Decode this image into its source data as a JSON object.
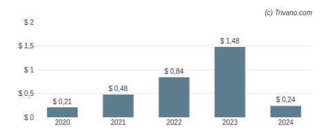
{
  "chart_data": {
    "type": "bar",
    "categories": [
      "2020",
      "2021",
      "2022",
      "2023",
      "2024"
    ],
    "values": [
      0.21,
      0.48,
      0.84,
      1.48,
      0.24
    ],
    "value_labels": [
      "$ 0,21",
      "$ 0,48",
      "$ 0,84",
      "$ 1,48",
      "$ 0,24"
    ],
    "data_labels": true,
    "color": "#5f7f8e",
    "ylim": [
      0,
      2.0
    ],
    "yticks": [
      {
        "value": 0,
        "label": "$ 0"
      },
      {
        "value": 0.5,
        "label": "$ 0,5"
      },
      {
        "value": 1.0,
        "label": "$ 1"
      },
      {
        "value": 1.5,
        "label": "$ 1,5"
      },
      {
        "value": 2.0,
        "label": "$ 2"
      }
    ],
    "grid": true,
    "annotations": [
      "(c) Trivano.com"
    ]
  }
}
